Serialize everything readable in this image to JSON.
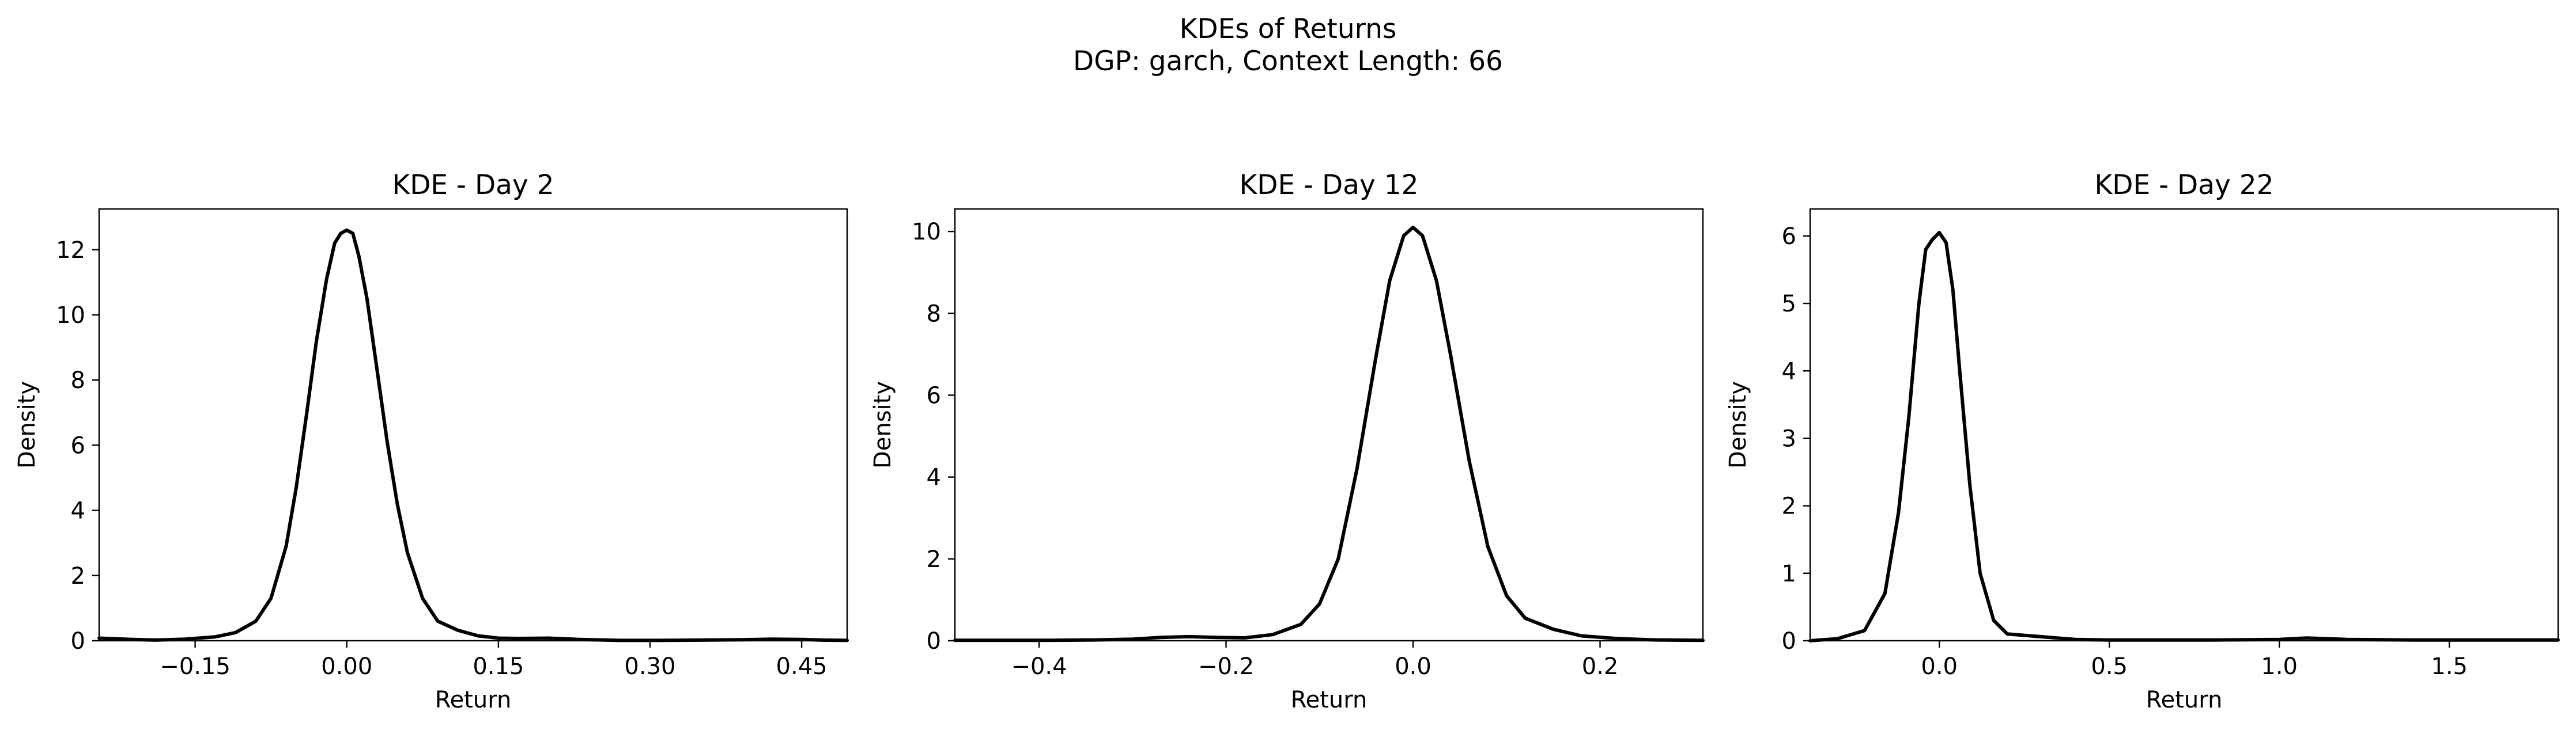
{
  "figure": {
    "title_line1": "KDEs of Returns",
    "title_line2": "DGP: garch, Context Length: 66"
  },
  "chart_data": [
    {
      "type": "line",
      "title": "KDE - Day 2",
      "xlabel": "Return",
      "ylabel": "Density",
      "xlim": [
        -0.245,
        0.495
      ],
      "ylim": [
        0,
        13.25
      ],
      "xticks": [
        -0.15,
        0.0,
        0.15,
        0.3,
        0.45
      ],
      "xtick_labels": [
        "−0.15",
        "0.00",
        "0.15",
        "0.30",
        "0.45"
      ],
      "yticks": [
        0,
        2,
        4,
        6,
        8,
        10,
        12
      ],
      "ytick_labels": [
        "0",
        "2",
        "4",
        "6",
        "8",
        "10",
        "12"
      ],
      "grid": false,
      "color": "#000000",
      "series": [
        {
          "x": [
            -0.245,
            -0.22,
            -0.19,
            -0.16,
            -0.13,
            -0.11,
            -0.09,
            -0.075,
            -0.06,
            -0.05,
            -0.04,
            -0.03,
            -0.02,
            -0.012,
            -0.006,
            0.0,
            0.006,
            0.012,
            0.02,
            0.03,
            0.04,
            0.05,
            0.06,
            0.075,
            0.09,
            0.11,
            0.13,
            0.15,
            0.17,
            0.2,
            0.23,
            0.27,
            0.31,
            0.35,
            0.39,
            0.42,
            0.45,
            0.47,
            0.495
          ],
          "y": [
            0.08,
            0.05,
            0.02,
            0.05,
            0.12,
            0.25,
            0.6,
            1.3,
            2.9,
            4.7,
            6.9,
            9.2,
            11.1,
            12.2,
            12.5,
            12.6,
            12.5,
            11.8,
            10.5,
            8.3,
            6.1,
            4.2,
            2.7,
            1.3,
            0.6,
            0.32,
            0.15,
            0.08,
            0.07,
            0.08,
            0.04,
            0.01,
            0.01,
            0.02,
            0.03,
            0.05,
            0.04,
            0.02,
            0.01
          ]
        }
      ]
    },
    {
      "type": "line",
      "title": "KDE - Day 12",
      "xlabel": "Return",
      "ylabel": "Density",
      "xlim": [
        -0.49,
        0.31
      ],
      "ylim": [
        0,
        10.55
      ],
      "xticks": [
        -0.4,
        -0.2,
        0.0,
        0.2
      ],
      "xtick_labels": [
        "−0.4",
        "−0.2",
        "0.0",
        "0.2"
      ],
      "yticks": [
        0,
        2,
        4,
        6,
        8,
        10
      ],
      "ytick_labels": [
        "0",
        "2",
        "4",
        "6",
        "8",
        "10"
      ],
      "grid": false,
      "color": "#000000",
      "series": [
        {
          "x": [
            -0.49,
            -0.44,
            -0.39,
            -0.34,
            -0.3,
            -0.27,
            -0.24,
            -0.21,
            -0.18,
            -0.15,
            -0.12,
            -0.1,
            -0.08,
            -0.06,
            -0.04,
            -0.025,
            -0.01,
            0.0,
            0.01,
            0.025,
            0.04,
            0.06,
            0.08,
            0.1,
            0.12,
            0.15,
            0.18,
            0.22,
            0.26,
            0.31
          ],
          "y": [
            0.01,
            0.01,
            0.01,
            0.02,
            0.04,
            0.08,
            0.1,
            0.08,
            0.07,
            0.15,
            0.4,
            0.9,
            2.0,
            4.2,
            6.9,
            8.8,
            9.9,
            10.1,
            9.9,
            8.8,
            7.0,
            4.4,
            2.3,
            1.1,
            0.55,
            0.28,
            0.12,
            0.05,
            0.02,
            0.01
          ]
        }
      ]
    },
    {
      "type": "line",
      "title": "KDE - Day 22",
      "xlabel": "Return",
      "ylabel": "Density",
      "xlim": [
        -0.38,
        1.82
      ],
      "ylim": [
        0,
        6.4
      ],
      "xticks": [
        0.0,
        0.5,
        1.0,
        1.5
      ],
      "xtick_labels": [
        "0.0",
        "0.5",
        "1.0",
        "1.5"
      ],
      "yticks": [
        0,
        1,
        2,
        3,
        4,
        5,
        6
      ],
      "ytick_labels": [
        "0",
        "1",
        "2",
        "3",
        "4",
        "5",
        "6"
      ],
      "grid": false,
      "color": "#000000",
      "series": [
        {
          "x": [
            -0.38,
            -0.3,
            -0.22,
            -0.16,
            -0.12,
            -0.09,
            -0.06,
            -0.04,
            -0.02,
            0.0,
            0.02,
            0.04,
            0.06,
            0.09,
            0.12,
            0.16,
            0.2,
            0.25,
            0.3,
            0.4,
            0.5,
            0.6,
            0.8,
            1.0,
            1.08,
            1.2,
            1.4,
            1.6,
            1.82
          ],
          "y": [
            0.0,
            0.03,
            0.15,
            0.7,
            1.9,
            3.3,
            5.0,
            5.8,
            5.95,
            6.05,
            5.9,
            5.2,
            4.0,
            2.3,
            1.0,
            0.3,
            0.1,
            0.08,
            0.06,
            0.02,
            0.01,
            0.01,
            0.01,
            0.02,
            0.04,
            0.02,
            0.01,
            0.01,
            0.01
          ]
        }
      ]
    }
  ]
}
